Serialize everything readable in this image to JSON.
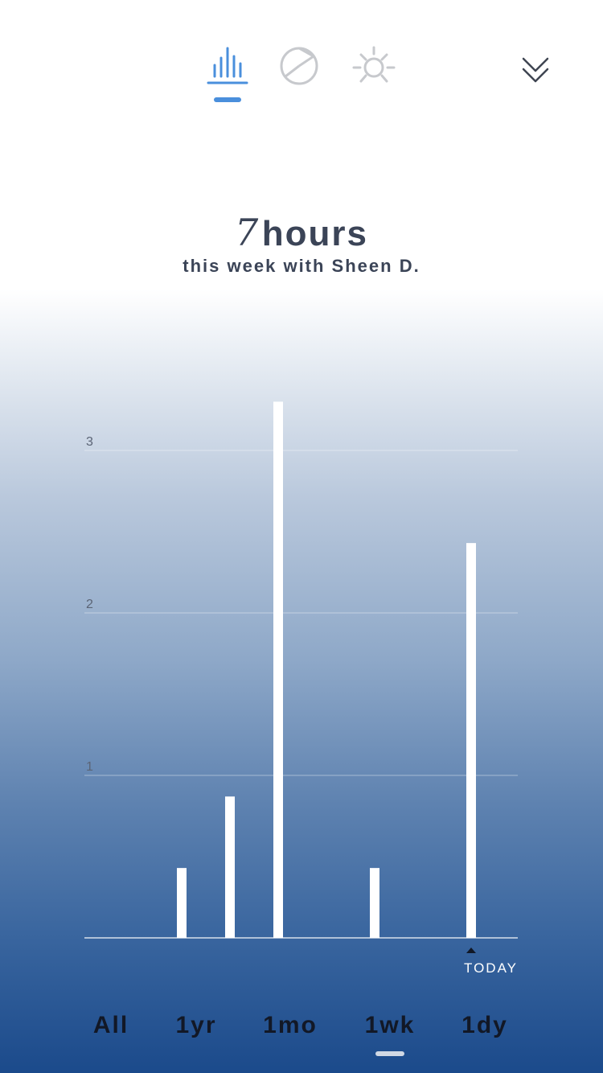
{
  "tabs": [
    {
      "icon": "bar-chart-icon",
      "active": true
    },
    {
      "icon": "pie-chart-icon",
      "active": false
    },
    {
      "icon": "sun-icon",
      "active": false
    }
  ],
  "header": {
    "collapse_icon": "double-chevron-down-icon",
    "hours_value": "7",
    "hours_unit": "hours",
    "subtitle": "this week with Sheen D."
  },
  "colors": {
    "accent": "#4a8fdc",
    "inactive_icon": "#c7c9cd",
    "text_dark": "#3b4457",
    "gradient_bottom": "#1b4a8b"
  },
  "chart_data": {
    "type": "bar",
    "categories": [
      "",
      "",
      "",
      "",
      "",
      "",
      "",
      ""
    ],
    "values": [
      0,
      0.43,
      0.87,
      3.3,
      0,
      0.43,
      0,
      2.43
    ],
    "ylim": [
      0,
      3
    ],
    "yticks": [
      1,
      2,
      3
    ],
    "ytick_labels": [
      "1",
      "2",
      "3"
    ],
    "grid": true,
    "annotation": "TODAY",
    "annotation_index": 7
  },
  "ranges": {
    "items": [
      "All",
      "1yr",
      "1mo",
      "1wk",
      "1dy"
    ],
    "selected": "1wk"
  }
}
